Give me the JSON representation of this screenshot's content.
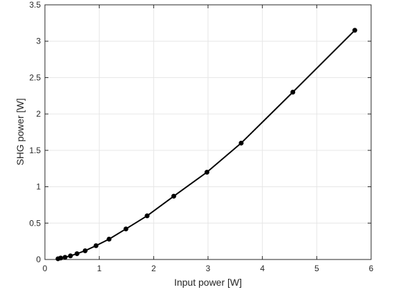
{
  "chart_data": {
    "type": "line",
    "title": "",
    "xlabel": "Input power [W]",
    "ylabel": "SHG power [W]",
    "xlim": [
      0,
      6
    ],
    "ylim": [
      0,
      3.5
    ],
    "xticks": [
      0,
      1,
      2,
      3,
      4,
      5,
      6
    ],
    "xtick_labels": [
      "0",
      "1",
      "2",
      "3",
      "4",
      "5",
      "6"
    ],
    "yticks": [
      0,
      0.5,
      1,
      1.5,
      2,
      2.5,
      3,
      3.5
    ],
    "ytick_labels": [
      "0",
      "0.5",
      "1",
      "1.5",
      "2",
      "2.5",
      "3",
      "3.5"
    ],
    "grid": true,
    "legend": "none",
    "series": [
      {
        "color": "#000000",
        "marker": "circle",
        "x": [
          0.24,
          0.29,
          0.37,
          0.47,
          0.59,
          0.74,
          0.94,
          1.18,
          1.49,
          1.88,
          2.37,
          2.98,
          3.61,
          4.56,
          5.7
        ],
        "y": [
          0.01,
          0.02,
          0.03,
          0.05,
          0.08,
          0.12,
          0.19,
          0.28,
          0.42,
          0.6,
          0.87,
          1.2,
          1.6,
          2.3,
          3.15
        ]
      }
    ]
  }
}
